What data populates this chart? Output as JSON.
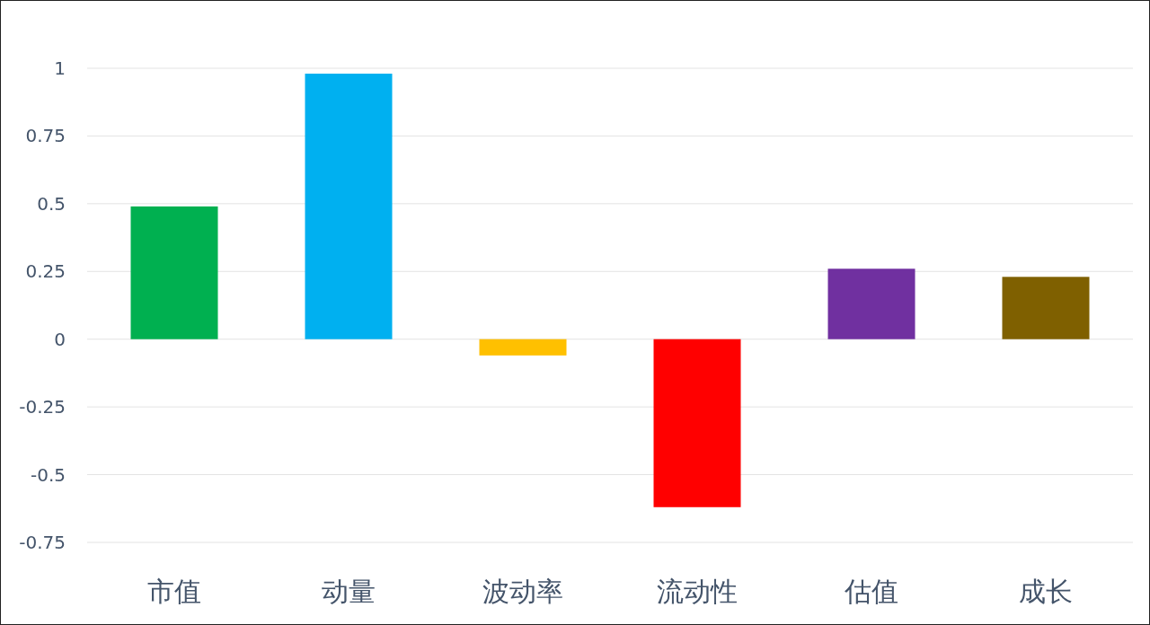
{
  "chart_data": {
    "type": "bar",
    "categories": [
      "市值",
      "动量",
      "波动率",
      "流动性",
      "估值",
      "成长"
    ],
    "values": [
      0.49,
      0.98,
      -0.06,
      -0.62,
      0.26,
      0.23
    ],
    "colors": [
      "#00b050",
      "#00b0f0",
      "#ffc000",
      "#ff0000",
      "#7030a0",
      "#7f6000"
    ],
    "ylim": [
      -0.75,
      1
    ],
    "yticks": [
      -0.75,
      -0.5,
      -0.25,
      0,
      0.25,
      0.5,
      0.75,
      1
    ],
    "grid": "y"
  }
}
